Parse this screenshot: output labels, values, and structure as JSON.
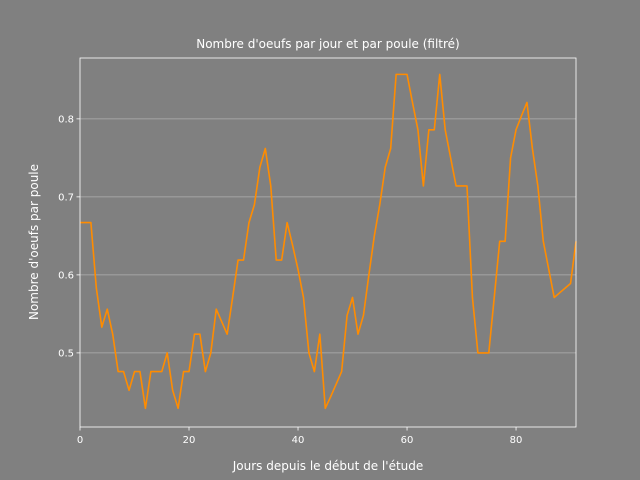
{
  "chart_data": {
    "type": "line",
    "title": "Nombre d'oeufs par jour et par poule (filtré)",
    "xlabel": "Jours depuis le début de l'étude",
    "ylabel": "Nombre d'oeufs par poule",
    "xlim": [
      0,
      91
    ],
    "ylim": [
      0.405,
      0.878
    ],
    "xticks": [
      0,
      20,
      40,
      60,
      80
    ],
    "yticks": [
      0.5,
      0.6,
      0.7,
      0.8
    ],
    "xtick_labels": [
      "0",
      "20",
      "40",
      "60",
      "80"
    ],
    "ytick_labels": [
      "0.5",
      "0.6",
      "0.7",
      "0.8"
    ],
    "grid": "y",
    "line_color": "#ff8c00",
    "background_color": "#808080",
    "series": [
      {
        "x": [
          0,
          1,
          2,
          3,
          4,
          5,
          6,
          7,
          8,
          9,
          10,
          11,
          12,
          13,
          14,
          15,
          16,
          17,
          18,
          19,
          20,
          21,
          22,
          23,
          24,
          25,
          26,
          27,
          28,
          29,
          30,
          31,
          32,
          33,
          34,
          35,
          36,
          37,
          38,
          39,
          40,
          41,
          42,
          43,
          44,
          45,
          46,
          47,
          48,
          49,
          50,
          51,
          52,
          53,
          54,
          55,
          56,
          57,
          58,
          59,
          60,
          61,
          62,
          63,
          64,
          65,
          66,
          67,
          68,
          69,
          70,
          71,
          72,
          73,
          74,
          75,
          76,
          77,
          78,
          79,
          80,
          81,
          82,
          83,
          84,
          85,
          86,
          87,
          88,
          89,
          90,
          91
        ],
        "y": [
          0.667,
          0.667,
          0.667,
          0.583,
          0.533,
          0.556,
          0.524,
          0.476,
          0.476,
          0.452,
          0.476,
          0.476,
          0.429,
          0.476,
          0.476,
          0.476,
          0.5,
          0.452,
          0.429,
          0.476,
          0.476,
          0.524,
          0.524,
          0.476,
          0.5,
          0.556,
          0.54,
          0.524,
          0.571,
          0.619,
          0.619,
          0.667,
          0.69,
          0.738,
          0.762,
          0.714,
          0.619,
          0.619,
          0.667,
          0.638,
          0.607,
          0.571,
          0.5,
          0.476,
          0.524,
          0.429,
          0.444,
          0.46,
          0.476,
          0.548,
          0.571,
          0.524,
          0.548,
          0.6,
          0.65,
          0.69,
          0.738,
          0.762,
          0.857,
          0.857,
          0.857,
          0.821,
          0.786,
          0.714,
          0.786,
          0.786,
          0.857,
          0.786,
          0.75,
          0.714,
          0.714,
          0.714,
          0.571,
          0.5,
          0.5,
          0.5,
          0.571,
          0.643,
          0.643,
          0.75,
          0.786,
          0.804,
          0.821,
          0.762,
          0.714,
          0.643,
          0.607,
          0.571,
          0.577,
          0.583,
          0.589,
          0.643
        ]
      }
    ]
  }
}
